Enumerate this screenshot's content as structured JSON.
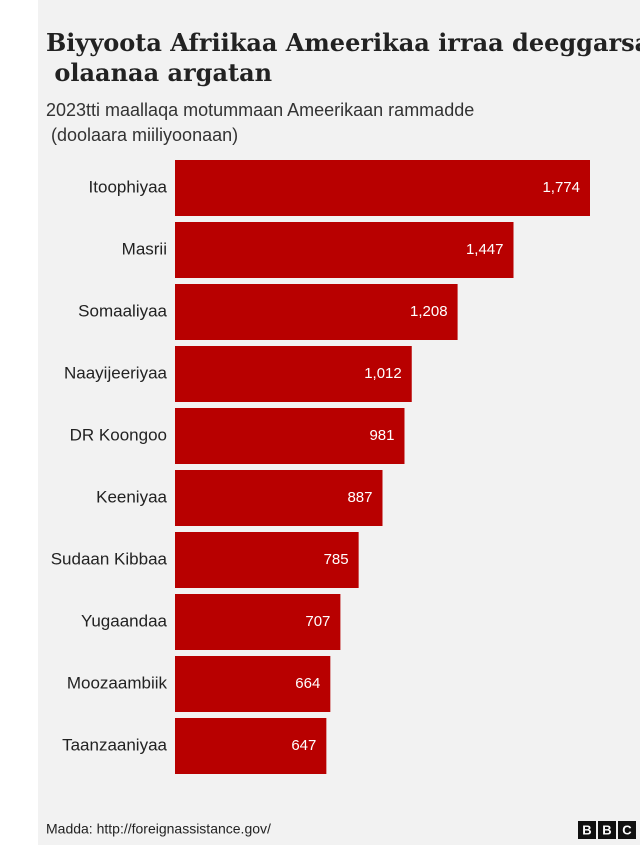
{
  "chart_data": {
    "type": "bar",
    "orientation": "horizontal",
    "title": "Biyyoota Afriikaa Ameerikaa irraa deeggarsa olaanaa argatan",
    "subtitle": "2023tti maallaqa motummaan Ameerikaan rammadde (doolaara miiliyoonaan)",
    "categories": [
      "Itoophiyaa",
      "Masrii",
      "Somaaliyaa",
      "Naayijeeriyaa",
      "DR Koongoo",
      "Keeniyaa",
      "Sudaan Kibbaa",
      "Yugaandaa",
      "Moozaambiik",
      "Taanzaaniyaa"
    ],
    "values": [
      1774,
      1447,
      1208,
      1012,
      981,
      887,
      785,
      707,
      664,
      647
    ],
    "value_labels": [
      "1,774",
      "1,447",
      "1,208",
      "1,012",
      "981",
      "887",
      "785",
      "707",
      "664",
      "647"
    ],
    "color": "#b80000",
    "source": "Madda: http://foreignassistance.gov/",
    "logo": [
      "B",
      "B",
      "C"
    ]
  }
}
